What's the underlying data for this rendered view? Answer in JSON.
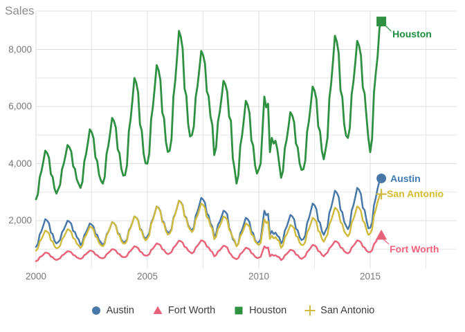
{
  "title": "Sales",
  "colors": {
    "background": "#ffffff",
    "grid_minor": "#e6e6e6",
    "grid_major": "#dcdcdc",
    "plot_border": "#e0e0e0",
    "title_text": "#8d8d8d",
    "tick_text": "#767676",
    "legend_text": "#3b3b3b"
  },
  "axes": {
    "x": {
      "tick_values": [
        2000,
        2005,
        2010,
        2015
      ],
      "tick_labels": [
        "2000",
        "2005",
        "2010",
        "2015"
      ],
      "minor_step_years": 2.5
    },
    "y": {
      "tick_values": [
        2000,
        4000,
        6000,
        8000
      ],
      "tick_labels": [
        "2,000",
        "4,000",
        "6,000",
        "8,000"
      ],
      "minor_step": 1000
    }
  },
  "legend": {
    "position": "bottom",
    "items": [
      {
        "label": "Austin",
        "marker": "circle",
        "color": "#4878a8"
      },
      {
        "label": "Fort Worth",
        "marker": "triangle",
        "color": "#e8637a"
      },
      {
        "label": "Houston",
        "marker": "square",
        "color": "#2e9142"
      },
      {
        "label": "San Antonio",
        "marker": "plus",
        "color": "#cfbb3f"
      }
    ]
  },
  "chart_data": {
    "type": "line",
    "title": "Sales",
    "xlabel": "",
    "ylabel": "Sales",
    "x_domain": [
      2000,
      2018.9
    ],
    "y_domain": [
      300,
      9350
    ],
    "x_unit": "monthly, Jan 2000 - Jul 2015",
    "grid": true,
    "legend_position": "bottom",
    "series": [
      {
        "name": "Austin",
        "marker": "circle",
        "color": "#4878a8",
        "label_color": "#3d79b3",
        "values": [
          1080,
          1180,
          1520,
          1640,
          1840,
          2050,
          2000,
          1910,
          1580,
          1530,
          1290,
          1200,
          1250,
          1330,
          1590,
          1690,
          1840,
          2000,
          1960,
          1890,
          1640,
          1600,
          1420,
          1340,
          1150,
          1230,
          1490,
          1590,
          1740,
          1900,
          1860,
          1790,
          1540,
          1500,
          1320,
          1240,
          1150,
          1230,
          1510,
          1610,
          1770,
          1950,
          1910,
          1830,
          1570,
          1520,
          1330,
          1250,
          1250,
          1340,
          1660,
          1770,
          1950,
          2150,
          2110,
          2020,
          1720,
          1660,
          1450,
          1360,
          1450,
          1560,
          1920,
          2060,
          2270,
          2500,
          2450,
          2340,
          2000,
          1930,
          1680,
          1580,
          1600,
          1710,
          2100,
          2240,
          2460,
          2700,
          2650,
          2540,
          2170,
          2110,
          1840,
          1730,
          1650,
          1770,
          2170,
          2320,
          2550,
          2800,
          2740,
          2630,
          2250,
          2180,
          1900,
          1790,
          1450,
          1540,
          1860,
          1970,
          2150,
          2350,
          2310,
          2220,
          1750,
          1600,
          1350,
          1280,
          1100,
          1200,
          1550,
          1680,
          1880,
          2100,
          2050,
          1950,
          1620,
          1560,
          1320,
          1220,
          1250,
          1340,
          1860,
          2350,
          2190,
          2240,
          1500,
          1640,
          1530,
          1580,
          1470,
          1420,
          1200,
          1300,
          1650,
          1780,
          1980,
          2200,
          2150,
          2050,
          1720,
          1660,
          1420,
          1320,
          1350,
          1480,
          1910,
          2080,
          2330,
          2600,
          2540,
          2410,
          2000,
          1930,
          1630,
          1500,
          1650,
          1790,
          2280,
          2460,
          2740,
          3050,
          2980,
          2840,
          2380,
          2290,
          1960,
          1820,
          1700,
          1850,
          2350,
          2540,
          2830,
          3150,
          3080,
          2930,
          2450,
          2370,
          2020,
          1730,
          1750,
          1920,
          2530,
          2790,
          3130,
          3390,
          3480
        ]
      },
      {
        "name": "Fort Worth",
        "marker": "triangle",
        "color": "#e8637a",
        "label_color": "#f4617d",
        "values": [
          580,
          610,
          720,
          750,
          810,
          880,
          870,
          840,
          740,
          720,
          650,
          620,
          650,
          680,
          780,
          810,
          870,
          930,
          920,
          890,
          800,
          780,
          710,
          680,
          660,
          690,
          790,
          830,
          890,
          950,
          940,
          910,
          810,
          790,
          720,
          690,
          680,
          710,
          820,
          870,
          930,
          1000,
          990,
          950,
          850,
          830,
          750,
          720,
          720,
          760,
          890,
          940,
          1020,
          1100,
          1080,
          1040,
          920,
          890,
          800,
          770,
          780,
          820,
          970,
          1020,
          1110,
          1200,
          1180,
          1140,
          1000,
          970,
          870,
          830,
          850,
          900,
          1050,
          1110,
          1200,
          1300,
          1280,
          1230,
          1080,
          1060,
          950,
          900,
          850,
          900,
          1060,
          1120,
          1210,
          1310,
          1290,
          1240,
          1090,
          1060,
          950,
          900,
          750,
          790,
          920,
          960,
          1040,
          1120,
          1100,
          1060,
          890,
          820,
          720,
          680,
          650,
          690,
          830,
          880,
          960,
          1050,
          1030,
          990,
          860,
          830,
          740,
          690,
          700,
          730,
          920,
          1100,
          1040,
          1060,
          750,
          810,
          770,
          790,
          740,
          720,
          620,
          660,
          780,
          830,
          900,
          980,
          960,
          930,
          810,
          790,
          700,
          660,
          700,
          750,
          900,
          960,
          1050,
          1150,
          1130,
          1080,
          930,
          910,
          800,
          750,
          830,
          880,
          1030,
          1090,
          1180,
          1280,
          1260,
          1210,
          1060,
          1040,
          930,
          880,
          850,
          900,
          1060,
          1120,
          1210,
          1310,
          1290,
          1240,
          1090,
          1060,
          950,
          900,
          900,
          960,
          1170,
          1250,
          1370,
          1460,
          1490
        ]
      },
      {
        "name": "Houston",
        "marker": "square",
        "color": "#2e9142",
        "label_color": "#1b8c3f",
        "values": [
          2750,
          2920,
          3520,
          3740,
          4080,
          4450,
          4370,
          4200,
          3630,
          3530,
          3120,
          2950,
          3100,
          3260,
          3800,
          4000,
          4310,
          4650,
          4570,
          4420,
          3910,
          3810,
          3440,
          3290,
          3150,
          3360,
          4070,
          4340,
          4750,
          5200,
          5100,
          4890,
          4220,
          4090,
          3600,
          3400,
          3300,
          3530,
          4340,
          4630,
          5090,
          5600,
          5490,
          5260,
          4500,
          4360,
          3810,
          3580,
          3600,
          3940,
          5130,
          5570,
          6250,
          7000,
          6830,
          6490,
          5370,
          5160,
          4350,
          4010,
          4000,
          4350,
          5550,
          6000,
          6690,
          7450,
          7280,
          6930,
          5790,
          5590,
          4760,
          4410,
          4450,
          4870,
          6340,
          6890,
          7730,
          8650,
          8440,
          8020,
          6630,
          6380,
          5370,
          4950,
          5000,
          5300,
          6330,
          6710,
          7300,
          7950,
          7800,
          7510,
          6530,
          6360,
          5650,
          5350,
          4300,
          4560,
          5470,
          5810,
          6330,
          6900,
          6770,
          6510,
          5650,
          5500,
          4200,
          3800,
          3300,
          3590,
          4610,
          4980,
          5560,
          6200,
          6060,
          5770,
          4810,
          4630,
          3940,
          3650,
          3800,
          4000,
          5200,
          6350,
          5970,
          6100,
          4400,
          4900,
          4700,
          4800,
          4500,
          4000,
          3500,
          3730,
          4540,
          4830,
          5290,
          5800,
          5690,
          5460,
          4700,
          4560,
          4010,
          3780,
          3800,
          4090,
          5110,
          5480,
          6060,
          6700,
          6560,
          6270,
          5310,
          5130,
          4440,
          4150,
          4500,
          4900,
          6290,
          6810,
          7600,
          8480,
          8280,
          7880,
          6570,
          6330,
          5380,
          4980,
          4900,
          5240,
          6430,
          6870,
          7550,
          8300,
          8130,
          7790,
          6670,
          6460,
          5650,
          4900,
          4400,
          4860,
          6460,
          7150,
          7760,
          8750,
          8980
        ]
      },
      {
        "name": "San Antonio",
        "marker": "plus",
        "color": "#cfbb3f",
        "label_color": "#d3bd2e",
        "values": [
          950,
          1020,
          1270,
          1360,
          1500,
          1650,
          1620,
          1550,
          1310,
          1270,
          1100,
          1030,
          1050,
          1120,
          1340,
          1430,
          1560,
          1700,
          1670,
          1600,
          1390,
          1350,
          1190,
          1130,
          1050,
          1130,
          1390,
          1490,
          1640,
          1800,
          1760,
          1690,
          1440,
          1400,
          1220,
          1140,
          1100,
          1190,
          1480,
          1590,
          1760,
          1950,
          1910,
          1820,
          1540,
          1490,
          1290,
          1200,
          1200,
          1300,
          1630,
          1750,
          1940,
          2150,
          2100,
          2010,
          1690,
          1640,
          1410,
          1310,
          1380,
          1490,
          1880,
          2030,
          2250,
          2500,
          2440,
          2330,
          1960,
          1900,
          1630,
          1510,
          1550,
          1670,
          2070,
          2220,
          2450,
          2700,
          2640,
          2530,
          2150,
          2080,
          1800,
          1690,
          1600,
          1700,
          2050,
          2180,
          2380,
          2600,
          2550,
          2450,
          2120,
          2060,
          1820,
          1720,
          1350,
          1430,
          1710,
          1810,
          1970,
          2150,
          2110,
          2030,
          1700,
          1580,
          1400,
          1310,
          1100,
          1180,
          1460,
          1560,
          1720,
          1900,
          1860,
          1780,
          1520,
          1470,
          1280,
          1200,
          1150,
          1220,
          1650,
          2050,
          1920,
          1960,
          1360,
          1470,
          1380,
          1420,
          1330,
          1280,
          1050,
          1130,
          1410,
          1510,
          1670,
          1850,
          1810,
          1730,
          1470,
          1420,
          1230,
          1150,
          1150,
          1250,
          1580,
          1700,
          1890,
          2100,
          2050,
          1960,
          1640,
          1590,
          1360,
          1260,
          1400,
          1510,
          1870,
          2010,
          2220,
          2450,
          2400,
          2290,
          1950,
          1880,
          1630,
          1530,
          1450,
          1560,
          1920,
          2060,
          2270,
          2500,
          2450,
          2340,
          2000,
          1930,
          1680,
          1500,
          1550,
          1690,
          2170,
          2380,
          2650,
          2860,
          2930
        ]
      }
    ]
  }
}
